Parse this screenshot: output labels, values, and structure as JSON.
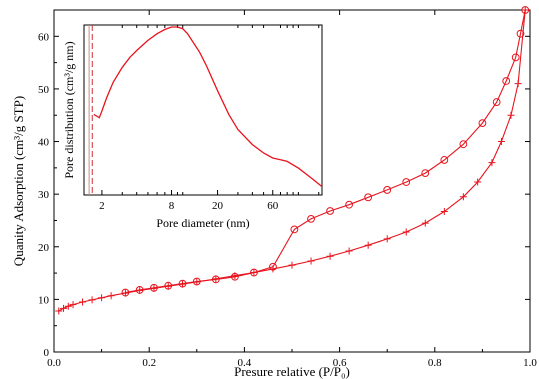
{
  "chart_data": [
    {
      "type": "line",
      "xlabel": "Presure relative (P/P₀)",
      "ylabel": "Quanity Adsorption (cm³/g STP)",
      "xlim": [
        0,
        1.0
      ],
      "ylim": [
        0,
        65
      ],
      "x_ticks": [
        0.0,
        0.2,
        0.4,
        0.6,
        0.8,
        1.0
      ],
      "x_tick_labels": [
        "0.0",
        "0.2",
        "0.4",
        "0.6",
        "0.8",
        "1.0"
      ],
      "y_ticks": [
        0,
        10,
        20,
        30,
        40,
        50,
        60
      ],
      "y_tick_labels": [
        "0",
        "10",
        "20",
        "30",
        "40",
        "50",
        "60"
      ],
      "color": "#e8141e",
      "grid": false,
      "series": [
        {
          "marker": "plus",
          "x": [
            0.01,
            0.02,
            0.03,
            0.04,
            0.06,
            0.08,
            0.1,
            0.12,
            0.15,
            0.18,
            0.21,
            0.24,
            0.27,
            0.3,
            0.34,
            0.38,
            0.42,
            0.46,
            0.5,
            0.54,
            0.58,
            0.62,
            0.66,
            0.7,
            0.74,
            0.78,
            0.82,
            0.86,
            0.89,
            0.92,
            0.94,
            0.96,
            0.975,
            0.99
          ],
          "y": [
            7.8,
            8.3,
            8.7,
            9.0,
            9.5,
            9.9,
            10.3,
            10.7,
            11.2,
            11.7,
            12.1,
            12.5,
            12.9,
            13.3,
            13.9,
            14.5,
            15.1,
            15.8,
            16.5,
            17.3,
            18.2,
            19.2,
            20.3,
            21.5,
            22.8,
            24.5,
            26.7,
            29.5,
            32.3,
            36.0,
            40.0,
            45.0,
            51.0,
            65.0
          ]
        },
        {
          "marker": "circle",
          "x": [
            0.99,
            0.98,
            0.97,
            0.95,
            0.93,
            0.9,
            0.86,
            0.82,
            0.78,
            0.74,
            0.7,
            0.66,
            0.62,
            0.58,
            0.54,
            0.505,
            0.46,
            0.42,
            0.38,
            0.34,
            0.3,
            0.27,
            0.24,
            0.21,
            0.18,
            0.15
          ],
          "y": [
            65.0,
            60.5,
            56.0,
            51.5,
            47.5,
            43.5,
            39.5,
            36.5,
            34.0,
            32.3,
            30.8,
            29.4,
            28.0,
            26.8,
            25.3,
            23.3,
            16.2,
            15.1,
            14.3,
            13.8,
            13.4,
            13.0,
            12.6,
            12.2,
            11.8,
            11.3
          ]
        }
      ]
    },
    {
      "type": "line",
      "xlabel": "Pore diameter (nm)",
      "ylabel": "Pore distribution (cm³/g nm)",
      "x_scale": "log",
      "xlim": [
        1.4,
        160
      ],
      "x_ticks": [
        2,
        8,
        20,
        60
      ],
      "x_tick_labels": [
        "2",
        "8",
        "20",
        "60"
      ],
      "ylim": [
        0,
        1
      ],
      "color": "#e8141e",
      "reference_lines": [
        {
          "x": 1.55,
          "style": "solid",
          "color": "#c98a8a"
        },
        {
          "x": 1.65,
          "style": "dashed",
          "color": "#d03030"
        }
      ],
      "series": [
        {
          "x": [
            1.7,
            1.8,
            1.9,
            2.0,
            2.2,
            2.5,
            3.0,
            3.5,
            4.0,
            5.0,
            6.0,
            7.0,
            8.0,
            9.0,
            10.0,
            11.0,
            12.0,
            14.0,
            16.0,
            20.0,
            25.0,
            30.0,
            40.0,
            50.0,
            60.0,
            70.0,
            80.0,
            100.0,
            130.0,
            160.0
          ],
          "y": [
            0.48,
            0.47,
            0.46,
            0.5,
            0.58,
            0.67,
            0.76,
            0.82,
            0.86,
            0.92,
            0.96,
            0.985,
            1.0,
            1.0,
            0.99,
            0.96,
            0.92,
            0.85,
            0.77,
            0.62,
            0.48,
            0.39,
            0.3,
            0.25,
            0.22,
            0.21,
            0.2,
            0.16,
            0.1,
            0.05
          ]
        }
      ]
    }
  ]
}
